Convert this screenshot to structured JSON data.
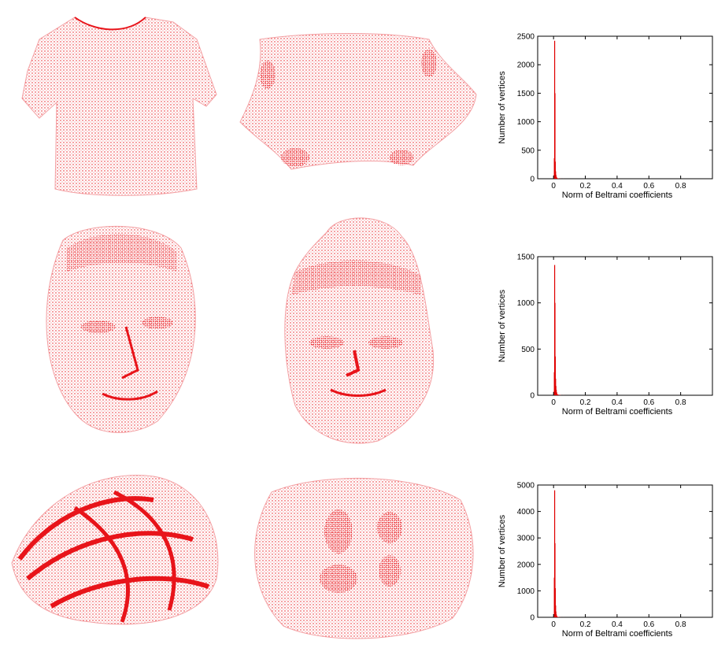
{
  "colors": {
    "points": "#e8141a",
    "bars": "#e00000",
    "axis": "#000000"
  },
  "rows": [
    {
      "original": "tshirt-point-cloud",
      "flattened": "tshirt-flattened-point-cloud"
    },
    {
      "original": "face-point-cloud",
      "flattened": "face-flattened-point-cloud"
    },
    {
      "original": "twisted-surface-point-cloud",
      "flattened": "twisted-surface-flattened-point-cloud"
    }
  ],
  "chart_data": [
    {
      "type": "bar",
      "xlabel": "Norm of Beltrami coefficients",
      "ylabel": "Number of vertices",
      "xlim": [
        -0.1,
        1.0
      ],
      "ylim": [
        0,
        2500
      ],
      "xticks": [
        "0",
        "0.2",
        "0.4",
        "0.6",
        "0.8"
      ],
      "xtick_values": [
        0,
        0.2,
        0.4,
        0.6,
        0.8
      ],
      "yticks": [
        "0",
        "500",
        "1000",
        "1500",
        "2000",
        "2500"
      ],
      "ytick_values": [
        0,
        500,
        1000,
        1500,
        2000,
        2500
      ],
      "x": [
        0.0,
        0.002,
        0.004,
        0.006,
        0.008,
        0.01,
        0.012,
        0.014,
        0.016,
        0.018,
        0.02,
        0.025,
        0.03,
        0.04,
        0.06
      ],
      "values": [
        60,
        360,
        2420,
        1500,
        300,
        130,
        70,
        40,
        25,
        15,
        10,
        6,
        4,
        2,
        1
      ]
    },
    {
      "type": "bar",
      "xlabel": "Norm of Beltrami coefficients",
      "ylabel": "Number of vertices",
      "xlim": [
        -0.1,
        1.0
      ],
      "ylim": [
        0,
        1500
      ],
      "xticks": [
        "0",
        "0.2",
        "0.4",
        "0.6",
        "0.8"
      ],
      "xtick_values": [
        0,
        0.2,
        0.4,
        0.6,
        0.8
      ],
      "yticks": [
        "0",
        "500",
        "1000",
        "1500"
      ],
      "ytick_values": [
        0,
        500,
        1000,
        1500
      ],
      "x": [
        0.0,
        0.002,
        0.004,
        0.006,
        0.008,
        0.01,
        0.012,
        0.014,
        0.016,
        0.018,
        0.02,
        0.025,
        0.03,
        0.04,
        0.06
      ],
      "values": [
        40,
        250,
        1410,
        1000,
        420,
        180,
        100,
        60,
        35,
        20,
        12,
        8,
        5,
        3,
        1
      ]
    },
    {
      "type": "bar",
      "xlabel": "Norm of Beltrami coefficients",
      "ylabel": "Number of vertices",
      "xlim": [
        -0.1,
        1.0
      ],
      "ylim": [
        0,
        5000
      ],
      "xticks": [
        "0",
        "0.2",
        "0.4",
        "0.6",
        "0.8"
      ],
      "xtick_values": [
        0,
        0.2,
        0.4,
        0.6,
        0.8
      ],
      "yticks": [
        "0",
        "1000",
        "2000",
        "3000",
        "4000",
        "5000"
      ],
      "ytick_values": [
        0,
        1000,
        2000,
        3000,
        4000,
        5000
      ],
      "x": [
        0.0,
        0.002,
        0.004,
        0.006,
        0.008,
        0.01,
        0.012,
        0.014,
        0.016,
        0.018,
        0.02,
        0.025,
        0.03,
        0.04,
        0.06
      ],
      "values": [
        120,
        1500,
        4800,
        2800,
        1100,
        450,
        220,
        120,
        70,
        40,
        25,
        15,
        8,
        4,
        2
      ]
    }
  ]
}
